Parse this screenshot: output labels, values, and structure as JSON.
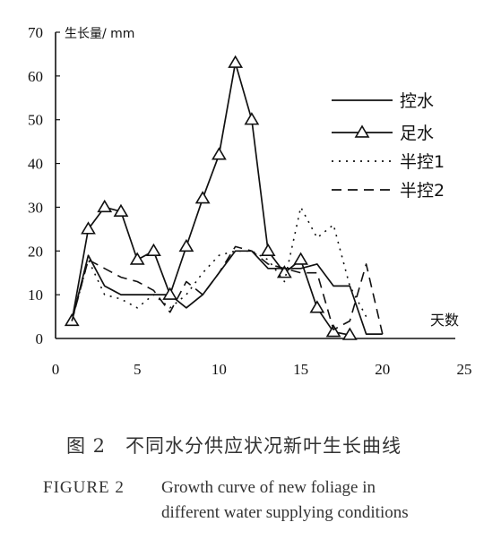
{
  "chart_data": {
    "type": "line",
    "ylabel": "生长量/ mm",
    "xlabel": "天数",
    "xlim": [
      0,
      25
    ],
    "ylim": [
      0,
      70
    ],
    "xticks": [
      "0",
      "5",
      "10",
      "15",
      "20",
      "25"
    ],
    "yticks": [
      "0",
      "10",
      "20",
      "30",
      "40",
      "50",
      "60",
      "70"
    ],
    "grid": false,
    "legend_position": "right",
    "series": [
      {
        "name": "控水",
        "style": "solid",
        "marker": "none",
        "x": [
          1,
          2,
          3,
          4,
          5,
          6,
          7,
          8,
          9,
          10,
          11,
          12,
          13,
          14,
          15,
          16,
          17,
          18,
          19,
          20
        ],
        "y": [
          4,
          19,
          12,
          10,
          10,
          10,
          10,
          7,
          10,
          15,
          20,
          20,
          16,
          16,
          16,
          17,
          12,
          12,
          1,
          1
        ]
      },
      {
        "name": "足水",
        "style": "solid",
        "marker": "triangle",
        "x": [
          1,
          2,
          3,
          4,
          5,
          6,
          7,
          8,
          9,
          10,
          11,
          12,
          13,
          14,
          15,
          16,
          17,
          18
        ],
        "y": [
          4,
          25,
          30,
          29,
          18,
          20,
          10,
          21,
          32,
          42,
          63,
          50,
          20,
          15,
          18,
          7,
          1.5,
          0.8
        ]
      },
      {
        "name": "半控1",
        "style": "dotted",
        "marker": "none",
        "x": [
          1,
          2,
          3,
          4,
          5,
          6,
          7,
          8,
          9,
          10,
          11,
          12,
          13,
          14,
          15,
          16,
          17,
          18,
          19
        ],
        "y": [
          4,
          18,
          10,
          9,
          7,
          10,
          7,
          10,
          15,
          19,
          20,
          20,
          18,
          13,
          30,
          23,
          26,
          12,
          5
        ]
      },
      {
        "name": "半控2",
        "style": "dashed",
        "marker": "none",
        "x": [
          1,
          2,
          3,
          4,
          5,
          6,
          7,
          8,
          9,
          10,
          11,
          12,
          13,
          14,
          15,
          16,
          17,
          18,
          19,
          20
        ],
        "y": [
          4,
          18,
          16,
          14,
          13,
          11,
          6,
          13,
          10,
          15,
          21,
          20,
          17,
          16,
          15,
          15,
          2,
          4,
          17,
          1
        ]
      }
    ]
  },
  "caption": {
    "cn": "图 2　不同水分供应状况新叶生长曲线",
    "en_label": "FIGURE 2",
    "en_line1": "Growth curve of new foliage in",
    "en_line2": "different water supplying conditions"
  }
}
